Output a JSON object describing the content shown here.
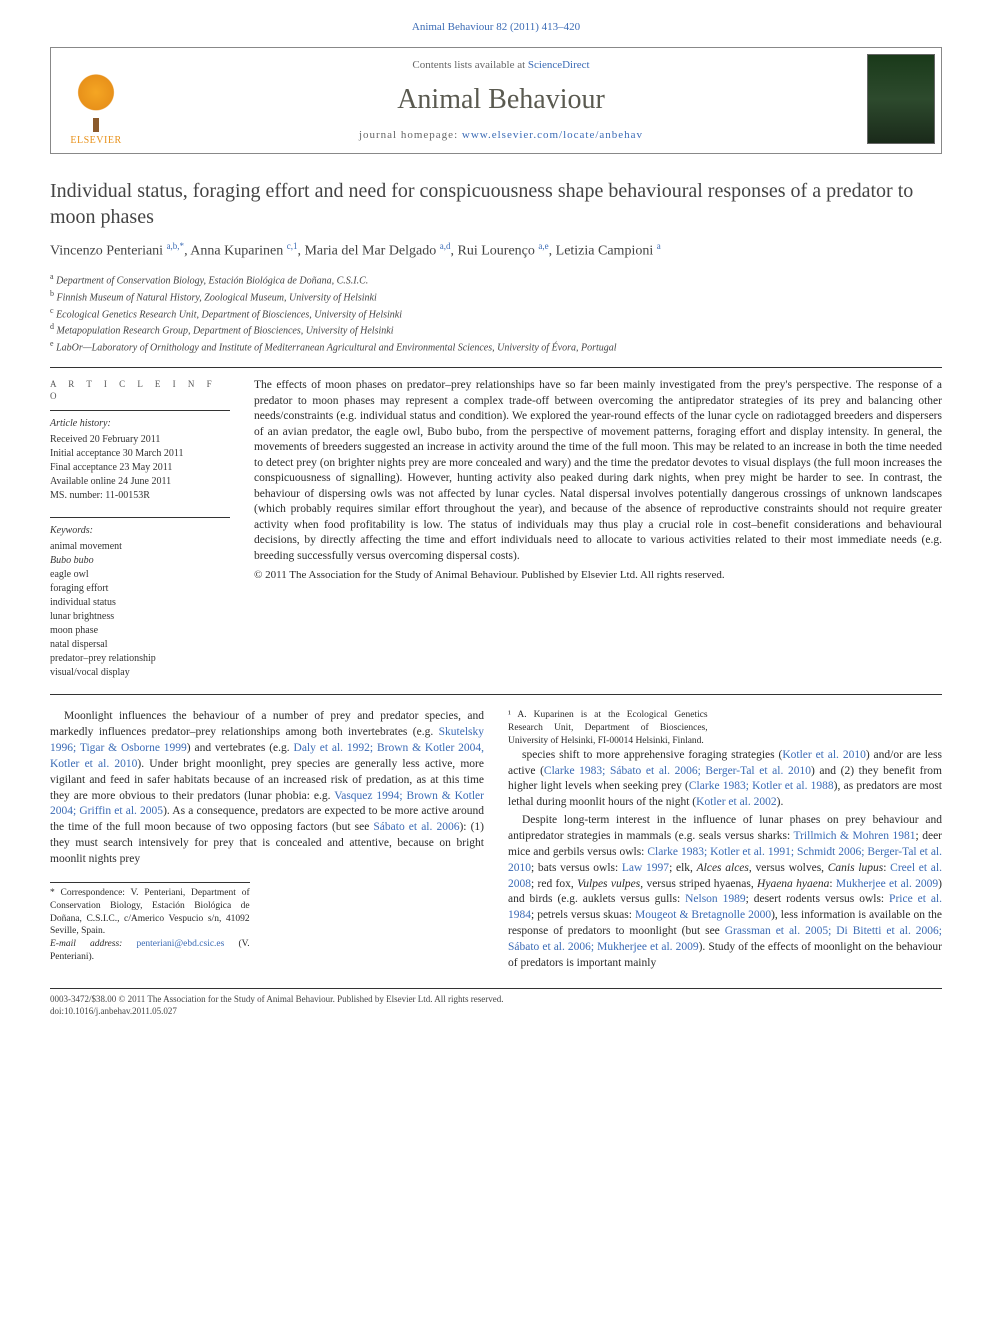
{
  "citation": "Animal Behaviour 82 (2011) 413–420",
  "header": {
    "contents_prefix": "Contents lists available at ",
    "contents_link": "ScienceDirect",
    "journal": "Animal Behaviour",
    "homepage_prefix": "journal homepage: ",
    "homepage_link": "www.elsevier.com/locate/anbehav",
    "elsevier": "ELSEVIER"
  },
  "title": "Individual status, foraging effort and need for conspicuousness shape behavioural responses of a predator to moon phases",
  "authors_html": "Vincenzo Penteriani <sup>a,b,*</sup>, Anna Kuparinen <sup>c,1</sup>, Maria del Mar Delgado <sup>a,d</sup>, Rui Lourenço <sup>a,e</sup>, Letizia Campioni <sup>a</sup>",
  "affiliations": [
    {
      "sup": "a",
      "text": "Department of Conservation Biology, Estación Biológica de Doñana, C.S.I.C."
    },
    {
      "sup": "b",
      "text": "Finnish Museum of Natural History, Zoological Museum, University of Helsinki"
    },
    {
      "sup": "c",
      "text": "Ecological Genetics Research Unit, Department of Biosciences, University of Helsinki"
    },
    {
      "sup": "d",
      "text": "Metapopulation Research Group, Department of Biosciences, University of Helsinki"
    },
    {
      "sup": "e",
      "text": "LabOr—Laboratory of Ornithology and Institute of Mediterranean Agricultural and Environmental Sciences, University of Évora, Portugal"
    }
  ],
  "info": {
    "heading": "A R T I C L E   I N F O",
    "history_label": "Article history:",
    "history": [
      "Received 20 February 2011",
      "Initial acceptance 30 March 2011",
      "Final acceptance 23 May 2011",
      "Available online 24 June 2011",
      "MS. number: 11-00153R"
    ],
    "keywords_label": "Keywords:",
    "keywords": [
      "animal movement",
      "Bubo bubo",
      "eagle owl",
      "foraging effort",
      "individual status",
      "lunar brightness",
      "moon phase",
      "natal dispersal",
      "predator–prey relationship",
      "visual/vocal display"
    ]
  },
  "abstract": "The effects of moon phases on predator–prey relationships have so far been mainly investigated from the prey's perspective. The response of a predator to moon phases may represent a complex trade-off between overcoming the antipredator strategies of its prey and balancing other needs/constraints (e.g. individual status and condition). We explored the year-round effects of the lunar cycle on radiotagged breeders and dispersers of an avian predator, the eagle owl, Bubo bubo, from the perspective of movement patterns, foraging effort and display intensity. In general, the movements of breeders suggested an increase in activity around the time of the full moon. This may be related to an increase in both the time needed to detect prey (on brighter nights prey are more concealed and wary) and the time the predator devotes to visual displays (the full moon increases the conspicuousness of signalling). However, hunting activity also peaked during dark nights, when prey might be harder to see. In contrast, the behaviour of dispersing owls was not affected by lunar cycles. Natal dispersal involves potentially dangerous crossings of unknown landscapes (which probably requires similar effort throughout the year), and because of the absence of reproductive constraints should not require greater activity when food profitability is low. The status of individuals may thus play a crucial role in cost–benefit considerations and behavioural decisions, by directly affecting the time and effort individuals need to allocate to various activities related to their most immediate needs (e.g. breeding successfully versus overcoming dispersal costs).",
  "copyright_line": "© 2011 The Association for the Study of Animal Behaviour. Published by Elsevier Ltd. All rights reserved.",
  "body": {
    "p1": "Moonlight influences the behaviour of a number of prey and predator species, and markedly influences predator–prey relationships among both invertebrates (e.g. <span class='cite'>Skutelsky 1996; Tigar & Osborne 1999</span>) and vertebrates (e.g. <span class='cite'>Daly et al. 1992; Brown & Kotler 2004, Kotler et al. 2010</span>). Under bright moonlight, prey species are generally less active, more vigilant and feed in safer habitats because of an increased risk of predation, as at this time they are more obvious to their predators (lunar phobia: e.g. <span class='cite'>Vasquez 1994; Brown & Kotler 2004; Griffin et al. 2005</span>). As a consequence, predators are expected to be more active around the time of the full moon because of two opposing factors (but see <span class='cite'>Sábato et al. 2006</span>): (1) they must search intensively for prey that is concealed and attentive, because on bright moonlit nights prey",
    "p2": "species shift to more apprehensive foraging strategies (<span class='cite'>Kotler et al. 2010</span>) and/or are less active (<span class='cite'>Clarke 1983; Sábato et al. 2006; Berger-Tal et al. 2010</span>) and (2) they benefit from higher light levels when seeking prey (<span class='cite'>Clarke 1983; Kotler et al. 1988</span>), as predators are most lethal during moonlit hours of the night (<span class='cite'>Kotler et al. 2002</span>).",
    "p3": "Despite long-term interest in the influence of lunar phases on prey behaviour and antipredator strategies in mammals (e.g. seals versus sharks: <span class='cite'>Trillmich & Mohren 1981</span>; deer mice and gerbils versus owls: <span class='cite'>Clarke 1983; Kotler et al. 1991; Schmidt 2006; Berger-Tal et al. 2010</span>; bats versus owls: <span class='cite'>Law 1997</span>; elk, <span class='ital'>Alces alces</span>, versus wolves, <span class='ital'>Canis lupus</span>: <span class='cite'>Creel et al. 2008</span>; red fox, <span class='ital'>Vulpes vulpes</span>, versus striped hyaenas, <span class='ital'>Hyaena hyaena</span>: <span class='cite'>Mukherjee et al. 2009</span>) and birds (e.g. auklets versus gulls: <span class='cite'>Nelson 1989</span>; desert rodents versus owls: <span class='cite'>Price et al. 1984</span>; petrels versus skuas: <span class='cite'>Mougeot & Bretagnolle 2000</span>), less information is available on the response of predators to moonlight (but see <span class='cite'>Grassman et al. 2005; Di Bitetti et al. 2006; Sábato et al. 2006; Mukherjee et al. 2009</span>). Study of the effects of moonlight on the behaviour of predators is important mainly"
  },
  "footnotes": {
    "corr": "* Correspondence: V. Penteriani, Department of Conservation Biology, Estación Biológica de Doñana, C.S.I.C., c/Americo Vespucio s/n, 41092 Seville, Spain.",
    "email_label": "E-mail address:",
    "email": "penteriani@ebd.csic.es",
    "email_suffix": "(V. Penteriani).",
    "note1": "¹ A. Kuparinen is at the Ecological Genetics Research Unit, Department of Biosciences, University of Helsinki, FI-00014 Helsinki, Finland."
  },
  "bottom": {
    "line1": "0003-3472/$38.00 © 2011 The Association for the Study of Animal Behaviour. Published by Elsevier Ltd. All rights reserved.",
    "line2": "doi:10.1016/j.anbehav.2011.05.027"
  }
}
